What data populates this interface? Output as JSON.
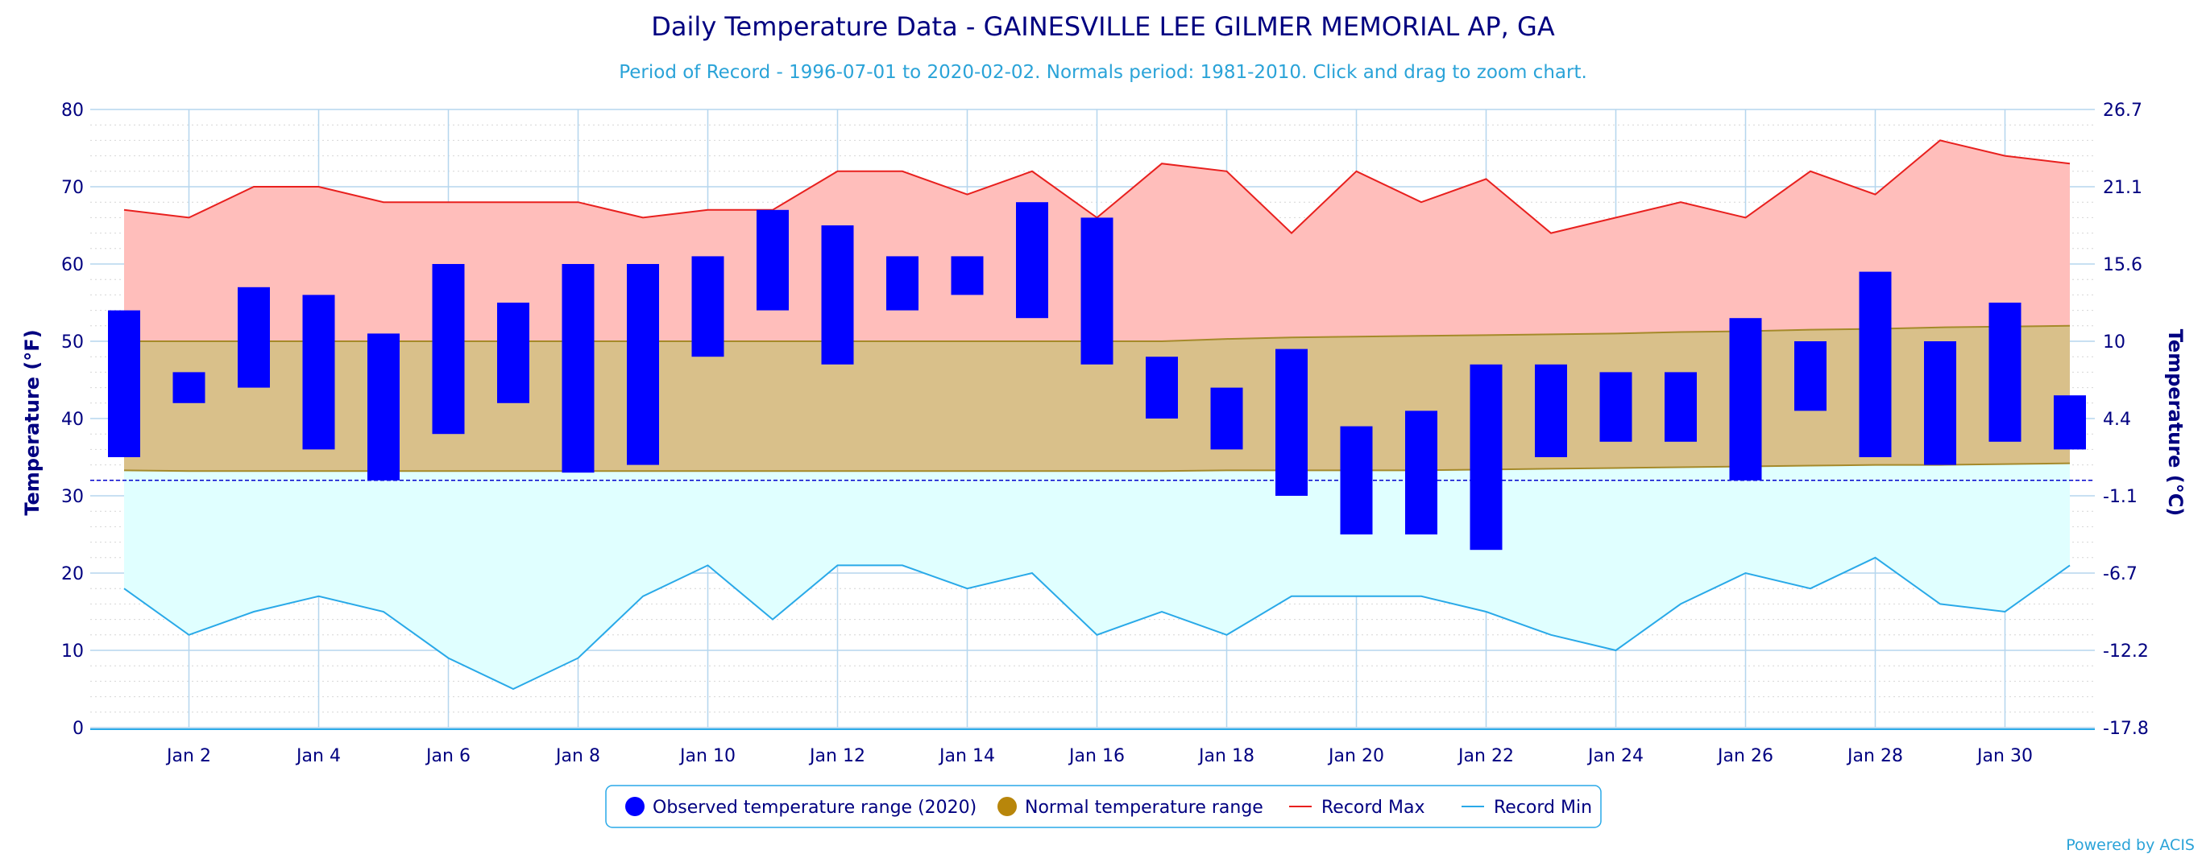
{
  "chart_data": {
    "type": "bar",
    "title": "Daily Temperature Data - GAINESVILLE LEE GILMER MEMORIAL AP, GA",
    "subtitle": "Period of Record - 1996-07-01 to 2020-02-02. Normals period: 1981-2010. Click and drag to zoom chart.",
    "ylabel": "Temperature (°F)",
    "ylabel_right": "Temperature (°C)",
    "ylim": [
      0,
      80
    ],
    "yticks": [
      "0",
      "10",
      "20",
      "30",
      "40",
      "50",
      "60",
      "70",
      "80"
    ],
    "yticks_right": [
      "-17.8",
      "-12.2",
      "-6.7",
      "-1.1",
      "4.4",
      "10",
      "15.6",
      "21.1",
      "26.7"
    ],
    "xlim": [
      1,
      31
    ],
    "xticks": [
      {
        "day": 2,
        "label": "Jan 2"
      },
      {
        "day": 4,
        "label": "Jan 4"
      },
      {
        "day": 6,
        "label": "Jan 6"
      },
      {
        "day": 8,
        "label": "Jan 8"
      },
      {
        "day": 10,
        "label": "Jan 10"
      },
      {
        "day": 12,
        "label": "Jan 12"
      },
      {
        "day": 14,
        "label": "Jan 14"
      },
      {
        "day": 16,
        "label": "Jan 16"
      },
      {
        "day": 18,
        "label": "Jan 18"
      },
      {
        "day": 20,
        "label": "Jan 20"
      },
      {
        "day": 22,
        "label": "Jan 22"
      },
      {
        "day": 24,
        "label": "Jan 24"
      },
      {
        "day": 26,
        "label": "Jan 26"
      },
      {
        "day": 28,
        "label": "Jan 28"
      },
      {
        "day": 30,
        "label": "Jan 30"
      }
    ],
    "freezing_line": 32,
    "days": [
      1,
      2,
      3,
      4,
      5,
      6,
      7,
      8,
      9,
      10,
      11,
      12,
      13,
      14,
      15,
      16,
      17,
      18,
      19,
      20,
      21,
      22,
      23,
      24,
      25,
      26,
      27,
      28,
      29,
      30,
      31
    ],
    "record_max": [
      67,
      66,
      70,
      70,
      68,
      68,
      68,
      68,
      66,
      67,
      67,
      72,
      72,
      69,
      72,
      66,
      73,
      72,
      64,
      72,
      68,
      71,
      64,
      66,
      68,
      66,
      72,
      69,
      76,
      74,
      73
    ],
    "record_min": [
      18,
      12,
      15,
      17,
      15,
      9,
      5,
      9,
      17,
      21,
      14,
      21,
      21,
      18,
      20,
      12,
      15,
      12,
      17,
      17,
      17,
      15,
      12,
      10,
      16,
      20,
      18,
      22,
      16,
      15,
      21
    ],
    "normal_max": [
      50,
      50,
      50,
      50,
      50,
      50,
      50,
      50,
      50,
      50,
      50,
      50,
      50,
      50,
      50,
      50,
      50,
      50.3,
      50.5,
      50.6,
      50.7,
      50.8,
      50.9,
      51,
      51.2,
      51.3,
      51.5,
      51.6,
      51.8,
      51.9,
      52
    ],
    "normal_min": [
      33.3,
      33.2,
      33.2,
      33.2,
      33.2,
      33.2,
      33.2,
      33.2,
      33.2,
      33.2,
      33.2,
      33.2,
      33.2,
      33.2,
      33.2,
      33.2,
      33.2,
      33.3,
      33.3,
      33.3,
      33.3,
      33.4,
      33.5,
      33.6,
      33.7,
      33.8,
      33.9,
      34,
      34,
      34.1,
      34.2
    ],
    "observed": [
      {
        "day": 1,
        "min": 35,
        "max": 54
      },
      {
        "day": 2,
        "min": 42,
        "max": 46
      },
      {
        "day": 3,
        "min": 44,
        "max": 57
      },
      {
        "day": 4,
        "min": 36,
        "max": 56
      },
      {
        "day": 5,
        "min": 32,
        "max": 51
      },
      {
        "day": 6,
        "min": 38,
        "max": 60
      },
      {
        "day": 7,
        "min": 42,
        "max": 55
      },
      {
        "day": 8,
        "min": 33,
        "max": 60
      },
      {
        "day": 9,
        "min": 34,
        "max": 60
      },
      {
        "day": 10,
        "min": 48,
        "max": 61
      },
      {
        "day": 11,
        "min": 54,
        "max": 67
      },
      {
        "day": 12,
        "min": 47,
        "max": 65
      },
      {
        "day": 13,
        "min": 54,
        "max": 61
      },
      {
        "day": 14,
        "min": 56,
        "max": 61
      },
      {
        "day": 15,
        "min": 53,
        "max": 68
      },
      {
        "day": 16,
        "min": 47,
        "max": 66
      },
      {
        "day": 17,
        "min": 40,
        "max": 48
      },
      {
        "day": 18,
        "min": 36,
        "max": 44
      },
      {
        "day": 19,
        "min": 30,
        "max": 49
      },
      {
        "day": 20,
        "min": 25,
        "max": 39
      },
      {
        "day": 21,
        "min": 25,
        "max": 41
      },
      {
        "day": 22,
        "min": 23,
        "max": 47
      },
      {
        "day": 23,
        "min": 35,
        "max": 47
      },
      {
        "day": 24,
        "min": 37,
        "max": 46
      },
      {
        "day": 25,
        "min": 37,
        "max": 46
      },
      {
        "day": 26,
        "min": 32,
        "max": 53
      },
      {
        "day": 27,
        "min": 41,
        "max": 50
      },
      {
        "day": 28,
        "min": 35,
        "max": 59
      },
      {
        "day": 29,
        "min": 34,
        "max": 50
      },
      {
        "day": 30,
        "min": 37,
        "max": 55
      },
      {
        "day": 31,
        "min": 36,
        "max": 43
      }
    ],
    "legend": [
      {
        "label": "Observed temperature range (2020)",
        "marker": "dot",
        "color": "#0000ff"
      },
      {
        "label": "Normal temperature range",
        "marker": "dot",
        "color": "#b8860b"
      },
      {
        "label": "Record Max",
        "marker": "line",
        "color": "#e8201e"
      },
      {
        "label": "Record Min",
        "marker": "line",
        "color": "#29a9e8"
      }
    ],
    "legend_position": "bottom-center",
    "grid": true,
    "colors": {
      "observed": "#0000ff",
      "record_max_fill": "#ffbebb",
      "record_max_line": "#e8201e",
      "normal_fill": "#d9c08a",
      "normal_line": "#a58a2a",
      "record_min_fill": "#e0ffff",
      "record_min_line": "#29a9e8",
      "grid": "#b5d6ee",
      "axis_text": "#000080"
    }
  },
  "credit": "Powered by ACIS"
}
